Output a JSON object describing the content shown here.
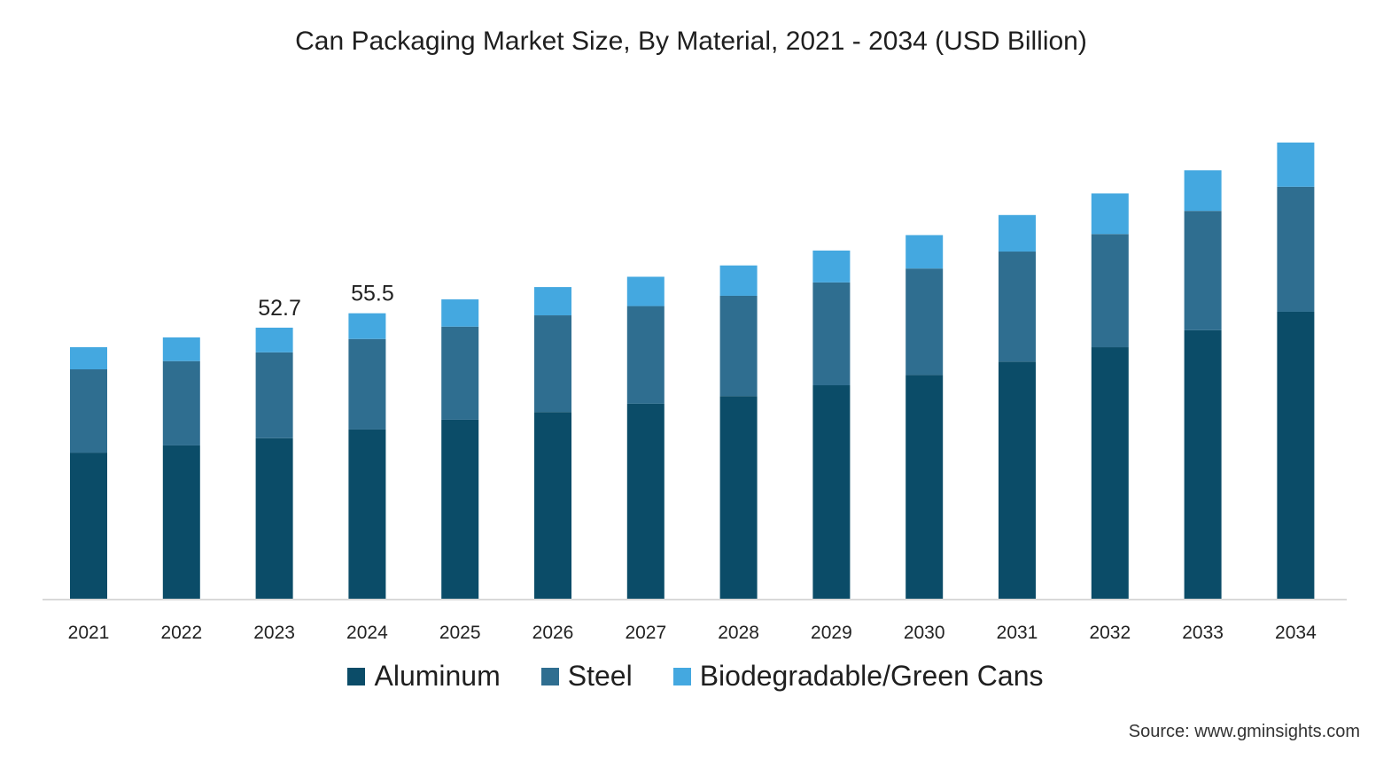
{
  "chart_data": {
    "type": "bar",
    "stacked": true,
    "title": "Can Packaging Market Size, By Material, 2021 - 2034 (USD Billion)",
    "xlabel": "",
    "ylabel": "",
    "ylim": [
      0,
      95
    ],
    "grid": false,
    "legend_position": "bottom",
    "categories": [
      "2021",
      "2022",
      "2023",
      "2024",
      "2025",
      "2026",
      "2027",
      "2028",
      "2029",
      "2030",
      "2031",
      "2032",
      "2033",
      "2034"
    ],
    "series": [
      {
        "name": "Aluminum",
        "color": "#0b4c68",
        "values": [
          28.4,
          29.8,
          31.2,
          32.9,
          34.8,
          36.3,
          37.9,
          39.4,
          41.5,
          43.5,
          46.1,
          48.9,
          52.2,
          55.8
        ]
      },
      {
        "name": "Steel",
        "color": "#2f6e90",
        "values": [
          16.2,
          16.4,
          16.7,
          17.6,
          18.1,
          18.8,
          19.0,
          19.5,
          20.0,
          20.7,
          21.4,
          22.0,
          23.2,
          24.3
        ]
      },
      {
        "name": "Biodegradable/Green Cans",
        "color": "#44a8e0",
        "values": [
          4.3,
          4.6,
          4.8,
          5.0,
          5.3,
          5.5,
          5.7,
          5.9,
          6.2,
          6.5,
          7.1,
          7.9,
          7.9,
          8.6
        ]
      }
    ],
    "annotations": [
      {
        "category": "2023",
        "text": "52.7"
      },
      {
        "category": "2024",
        "text": "55.5"
      }
    ]
  },
  "source": "Source: www.gminsights.com"
}
